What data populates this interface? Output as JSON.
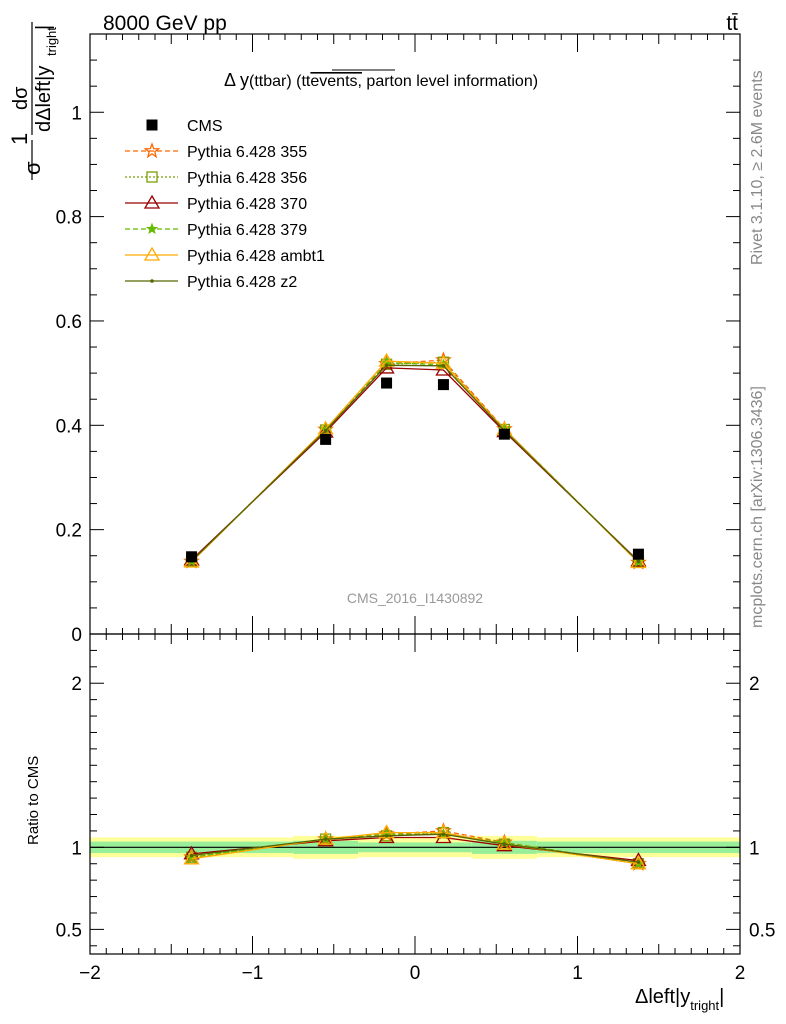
{
  "header": {
    "left": "8000 GeV pp",
    "right": "tt̄"
  },
  "side_labels": {
    "rivet": "Rivet 3.1.10, ≥ 2.6M events",
    "mcplots": "mcplots.cern.ch [arXiv:1306.3436]"
  },
  "watermark": "CMS_2016_I1430892",
  "chart_data": [
    {
      "type": "scatter",
      "title": "Δ y(ttbar) (tt̄events, parton level information)",
      "title_parts": {
        "a": "Δ y",
        "b": "(ttbar) (t",
        "c": "t",
        "d": "events,",
        "e": " parton level information)"
      },
      "ylabel": "1/σ dσ/dΔleft|y_tright|",
      "ylabel_parts": {
        "num": "1",
        "den": "σ",
        "dnum": "dσ",
        "dden": "dΔleft|y",
        "sub": "tright",
        "bar": "|"
      },
      "xlim": [
        -2,
        2
      ],
      "ylim": [
        0,
        1.15
      ],
      "x": [
        -1.375,
        -0.55,
        -0.175,
        0.175,
        0.55,
        1.375
      ],
      "y_ticks": [
        0,
        0.2,
        0.4,
        0.6,
        0.8,
        1
      ],
      "y_tick_labels": [
        "0",
        "0.2",
        "0.4",
        "0.6",
        "0.8",
        "1"
      ],
      "data": {
        "name": "CMS",
        "values": [
          0.148,
          0.373,
          0.481,
          0.478,
          0.383,
          0.153
        ],
        "color": "#000000"
      },
      "series": [
        {
          "name": "Pythia 6.428 355",
          "values": [
            0.139,
            0.392,
            0.518,
            0.525,
            0.393,
            0.137
          ],
          "color": "#ff6600",
          "marker": "star",
          "dash": "5,3"
        },
        {
          "name": "Pythia 6.428 356",
          "values": [
            0.139,
            0.391,
            0.517,
            0.521,
            0.392,
            0.138
          ],
          "color": "#7aa000",
          "marker": "square-open",
          "dash": "2,2"
        },
        {
          "name": "Pythia 6.428 370",
          "values": [
            0.142,
            0.387,
            0.51,
            0.506,
            0.388,
            0.14
          ],
          "color": "#990000",
          "marker": "triangle-open",
          "dash": ""
        },
        {
          "name": "Pythia 6.428 379",
          "values": [
            0.139,
            0.392,
            0.52,
            0.516,
            0.393,
            0.138
          ],
          "color": "#66bb00",
          "marker": "star-small",
          "dash": "5,3"
        },
        {
          "name": "Pythia 6.428 ambt1",
          "values": [
            0.138,
            0.393,
            0.523,
            0.519,
            0.392,
            0.137
          ],
          "color": "#ffaa00",
          "marker": "triangle-open",
          "dash": ""
        },
        {
          "name": "Pythia 6.428 z2",
          "values": [
            0.14,
            0.39,
            0.515,
            0.514,
            0.39,
            0.139
          ],
          "color": "#556600",
          "marker": "dot",
          "dash": ""
        }
      ]
    },
    {
      "type": "line",
      "ylabel": "Ratio to CMS",
      "xlabel": "Δleft|y_tright|",
      "xlabel_parts": {
        "a": "Δleft|y",
        "sub": "tright",
        "bar": "|"
      },
      "xlim": [
        -2,
        2
      ],
      "ylim": [
        0.35,
        2.3
      ],
      "x_ticks": [
        -2,
        -1,
        0,
        1,
        2
      ],
      "x_tick_labels": [
        "−2",
        "−1",
        "0",
        "1",
        "2"
      ],
      "y_ticks": [
        0.5,
        1,
        2
      ],
      "y_tick_labels": [
        "0.5",
        "1",
        "2"
      ],
      "x_edges": [
        -2,
        -0.75,
        -0.35,
        0,
        0.35,
        0.75,
        2
      ],
      "band_inner": [
        0.035,
        0.04,
        0.03,
        0.03,
        0.04,
        0.035
      ],
      "band_outer": [
        0.06,
        0.07,
        0.06,
        0.06,
        0.07,
        0.06
      ],
      "band_colors": {
        "inner": "#99ee99",
        "outer": "#ffff99"
      },
      "x": [
        -1.375,
        -0.55,
        -0.175,
        0.175,
        0.55,
        1.375
      ],
      "series": [
        {
          "name": "Pythia 6.428 355",
          "values": [
            0.94,
            1.05,
            1.08,
            1.1,
            1.03,
            0.9
          ],
          "color": "#ff6600",
          "marker": "star",
          "dash": "5,3"
        },
        {
          "name": "Pythia 6.428 356",
          "values": [
            0.94,
            1.05,
            1.07,
            1.09,
            1.02,
            0.9
          ],
          "color": "#7aa000",
          "marker": "square-open",
          "dash": "2,2"
        },
        {
          "name": "Pythia 6.428 370",
          "values": [
            0.96,
            1.04,
            1.06,
            1.06,
            1.01,
            0.92
          ],
          "color": "#990000",
          "marker": "triangle-open",
          "dash": ""
        },
        {
          "name": "Pythia 6.428 379",
          "values": [
            0.94,
            1.05,
            1.08,
            1.08,
            1.03,
            0.9
          ],
          "color": "#66bb00",
          "marker": "star-small",
          "dash": "5,3"
        },
        {
          "name": "Pythia 6.428 ambt1",
          "values": [
            0.93,
            1.05,
            1.09,
            1.09,
            1.02,
            0.9
          ],
          "color": "#ffaa00",
          "marker": "triangle-open",
          "dash": ""
        },
        {
          "name": "Pythia 6.428 z2",
          "values": [
            0.95,
            1.05,
            1.07,
            1.08,
            1.02,
            0.91
          ],
          "color": "#556600",
          "marker": "dot",
          "dash": ""
        }
      ]
    }
  ]
}
